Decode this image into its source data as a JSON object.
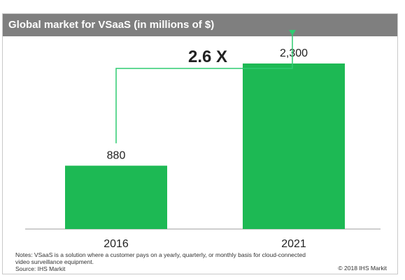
{
  "chart_data": {
    "type": "bar",
    "title": "Global market for VSaaS (in millions of $)",
    "categories": [
      "2016",
      "2021"
    ],
    "values": [
      880,
      2300
    ],
    "data_labels": [
      "880",
      "2,300"
    ],
    "ylim": [
      0,
      2600
    ],
    "grid": false,
    "growth_label": "2.6 X",
    "bar_color": "#1db954",
    "arrow_color": "#2ecc71",
    "xlabel": "",
    "ylabel": ""
  },
  "footer": {
    "notes": "Notes: VSaaS is a solution where a customer pays on a yearly, quarterly, or monthly basis for cloud-connected video surveillance equipment.",
    "source": "Source: IHS Markit",
    "copyright": "© 2018 IHS Markit"
  },
  "colors": {
    "header": "#7f7f7f",
    "axis": "#9e9e9e"
  }
}
